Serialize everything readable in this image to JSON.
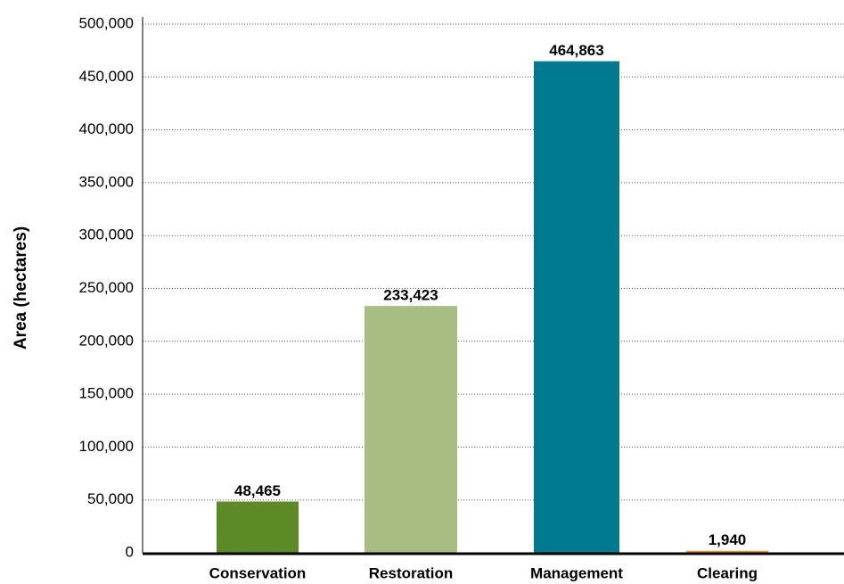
{
  "chart_data": {
    "type": "bar",
    "y_label": "Area (hectares)",
    "categories": [
      "Conservation",
      "Restoration",
      "Management",
      "Clearing"
    ],
    "values": [
      48465,
      233423,
      464863,
      1940
    ],
    "value_labels": [
      "48,465",
      "233,423",
      "464,863",
      "1,940"
    ],
    "colors": [
      "#5b8a26",
      "#a7bd82",
      "#007a91",
      "#e0962d"
    ],
    "ylim": [
      0,
      500000
    ],
    "yticks": [
      0,
      {
        "value": 50000,
        "label": "50,000"
      },
      {
        "value": 100000,
        "label": "100,000"
      },
      {
        "value": 150000,
        "label": "150,000"
      },
      {
        "value": 200000,
        "label": "200,000"
      },
      {
        "value": 250000,
        "label": "250,000"
      },
      {
        "value": 300000,
        "label": "300,000"
      },
      {
        "value": 350000,
        "label": "350,000"
      },
      {
        "value": 400000,
        "label": "400,000"
      },
      {
        "value": 450000,
        "label": "450,000"
      },
      {
        "value": 500000,
        "label": "500,000"
      }
    ],
    "grid": true
  }
}
